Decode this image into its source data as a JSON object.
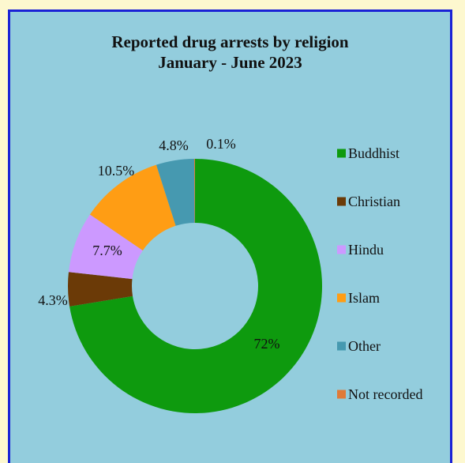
{
  "chart_data": {
    "type": "pie",
    "variant": "donut",
    "title": "Reported drug arrests by religion",
    "subtitle": "January - June 2023",
    "categories": [
      "Buddhist",
      "Christian",
      "Hindu",
      "Islam",
      "Other",
      "Not recorded"
    ],
    "values": [
      72,
      4.3,
      7.7,
      10.5,
      4.8,
      0.1
    ],
    "data_labels": [
      "72%",
      "4.3%",
      "7.7%",
      "10.5%",
      "4.8%",
      "0.1%"
    ],
    "colors": [
      "#0e9a0e",
      "#6b3a07",
      "#cc99ff",
      "#ff9d14",
      "#4699b0",
      "#e07a38"
    ],
    "legend_position": "right"
  }
}
